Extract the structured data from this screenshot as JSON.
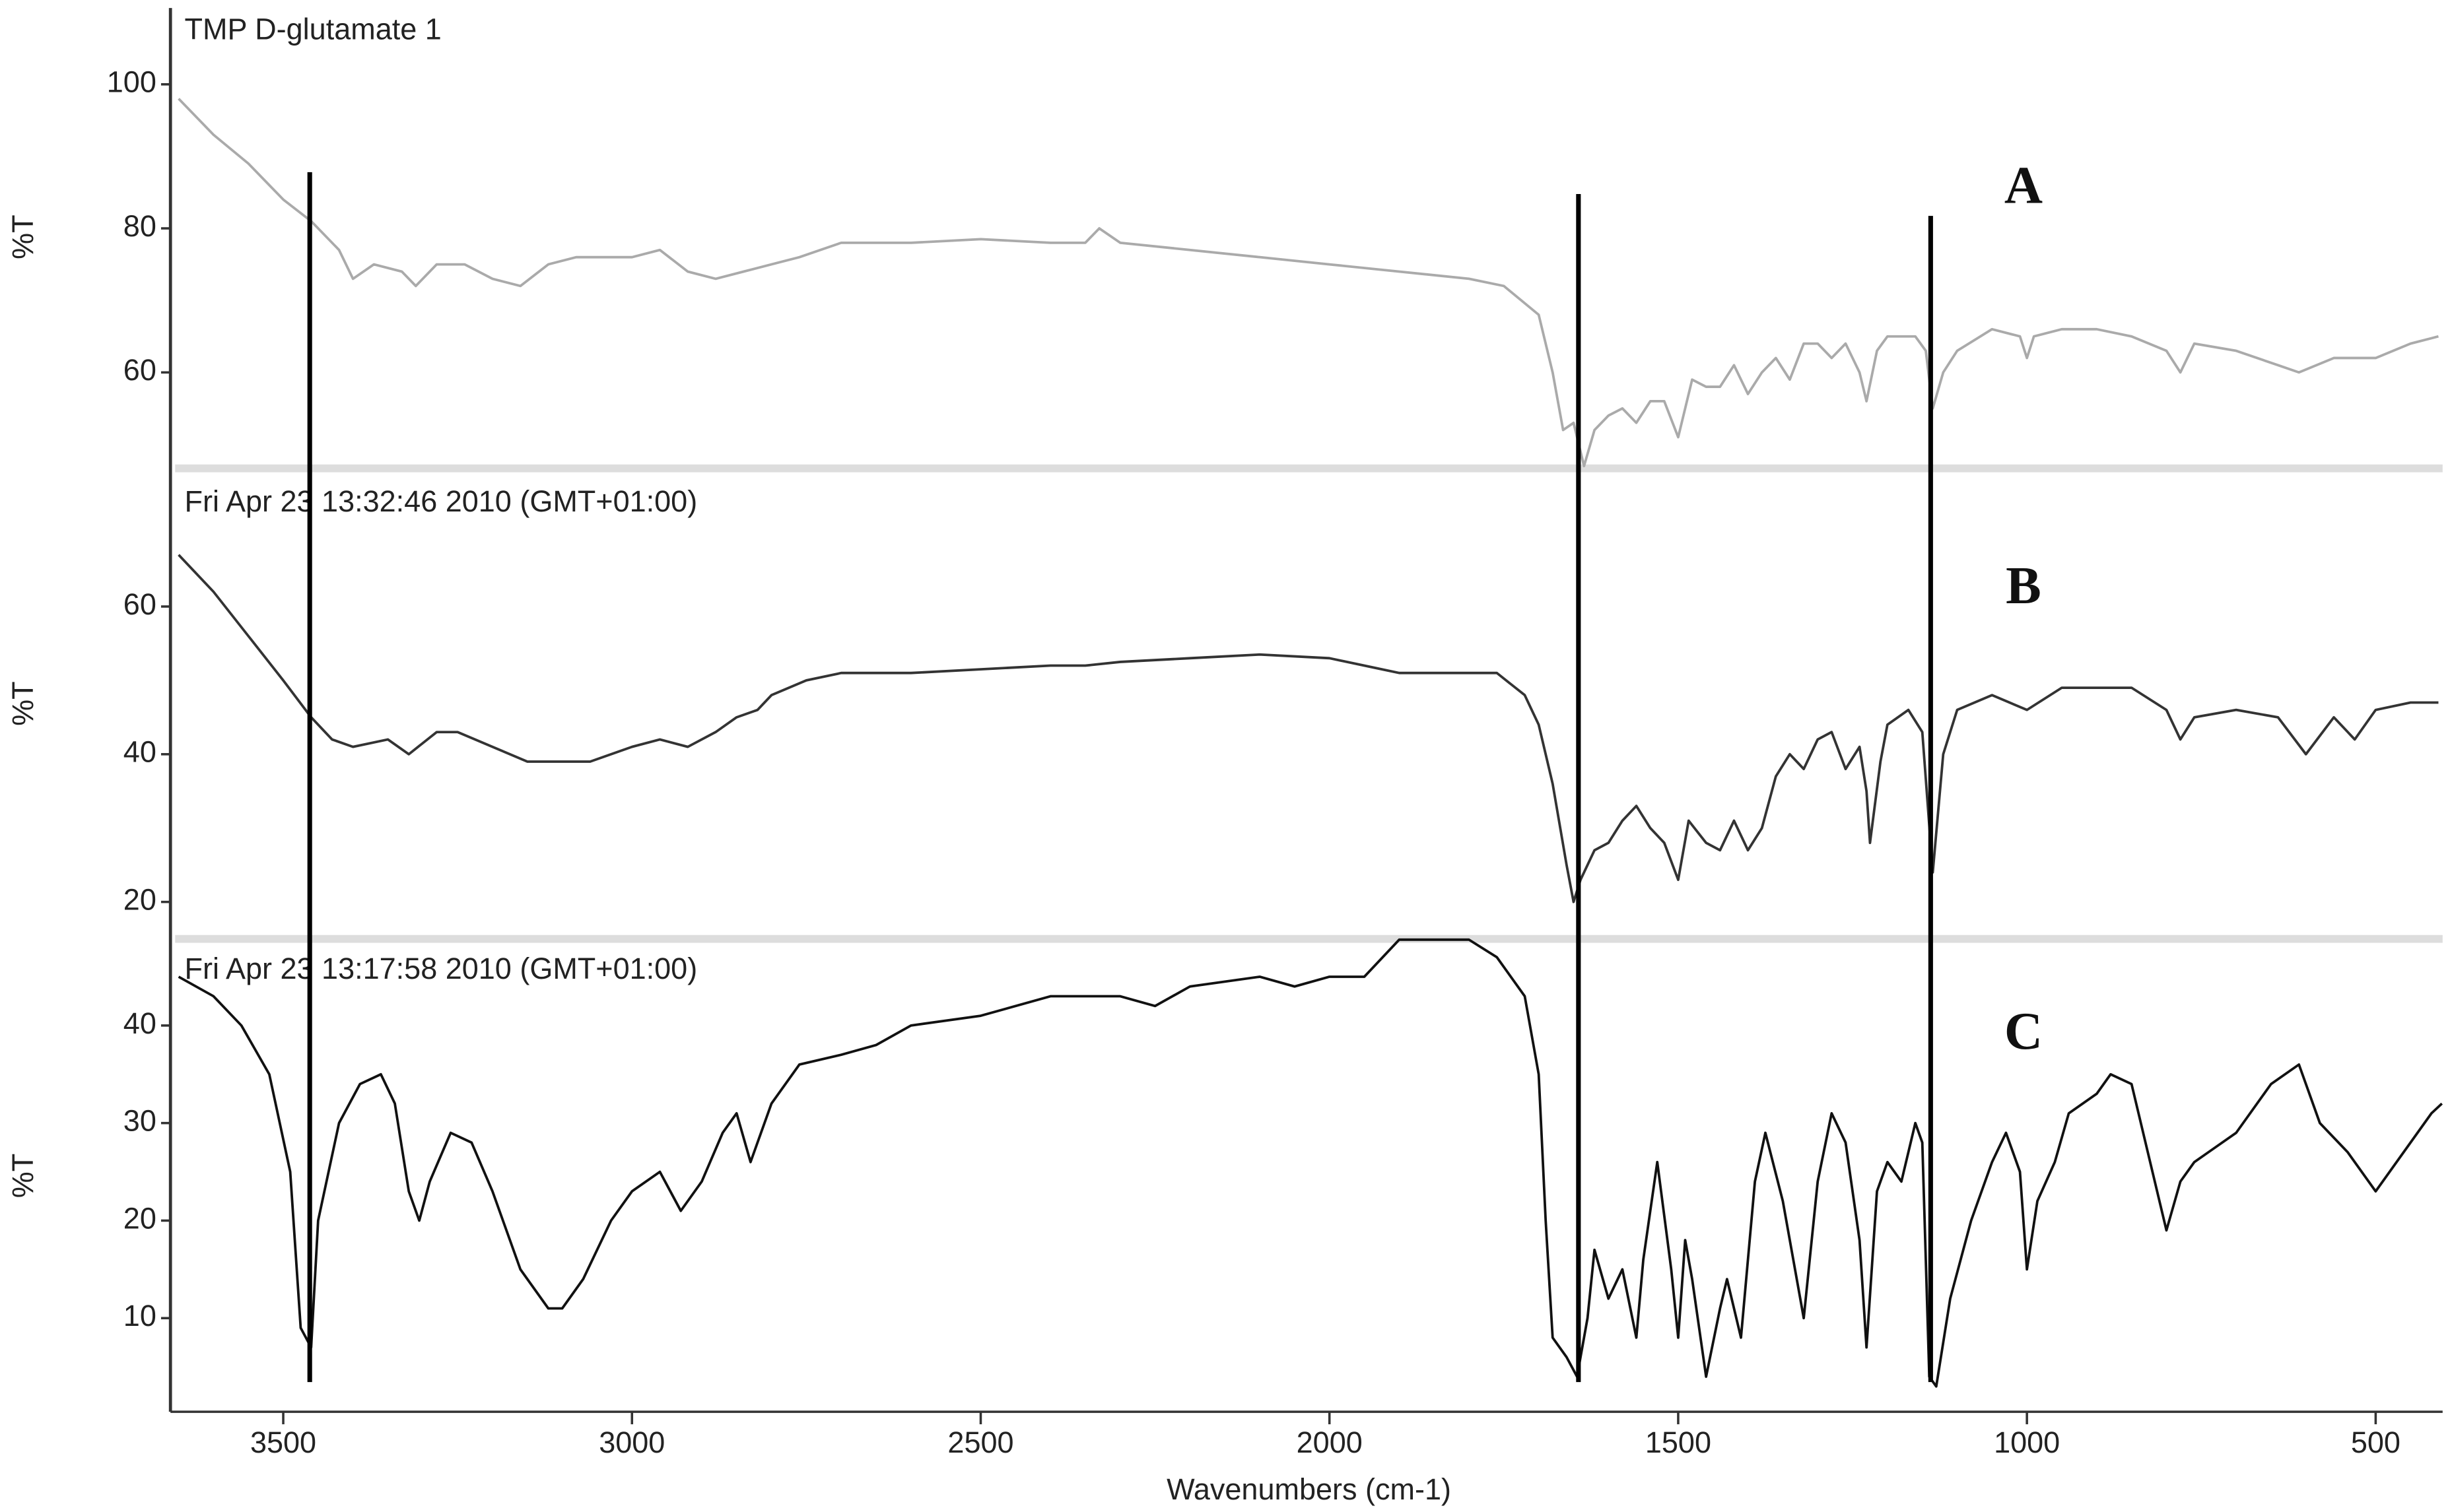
{
  "chart_data": [
    {
      "type": "line",
      "title": "TMP D-glutamate 1",
      "ylabel": "%T",
      "annotation": "A",
      "color": "#aaaaaa",
      "xlim": [
        3655,
        404
      ],
      "ylim": [
        47,
        110.6
      ],
      "yticks": [
        60,
        80,
        100
      ],
      "x": [
        3650,
        3600,
        3550,
        3500,
        3460,
        3420,
        3400,
        3370,
        3330,
        3310,
        3280,
        3240,
        3200,
        3160,
        3120,
        3080,
        3000,
        2960,
        2920,
        2880,
        2840,
        2800,
        2760,
        2700,
        2600,
        2500,
        2400,
        2350,
        2330,
        2300,
        2200,
        2100,
        2000,
        1900,
        1800,
        1750,
        1700,
        1680,
        1665,
        1650,
        1635,
        1620,
        1600,
        1580,
        1560,
        1540,
        1520,
        1500,
        1480,
        1460,
        1440,
        1420,
        1400,
        1380,
        1360,
        1340,
        1320,
        1300,
        1280,
        1260,
        1240,
        1230,
        1215,
        1200,
        1160,
        1145,
        1135,
        1120,
        1100,
        1050,
        1010,
        1000,
        990,
        950,
        900,
        850,
        800,
        780,
        760,
        700,
        640,
        610,
        560,
        500,
        450,
        410
      ],
      "values": [
        98,
        93,
        89,
        84,
        81,
        77,
        73,
        75,
        74,
        72,
        75,
        75,
        73,
        72,
        75,
        76,
        76,
        77,
        74,
        73,
        74,
        75,
        76,
        78,
        78,
        78.5,
        78,
        78,
        80,
        78,
        77,
        76,
        75,
        74,
        73,
        72,
        68,
        60,
        52,
        53,
        47,
        52,
        54,
        55,
        53,
        56,
        56,
        51,
        59,
        58,
        58,
        61,
        57,
        60,
        62,
        59,
        64,
        64,
        62,
        64,
        60,
        56,
        63,
        65,
        65,
        63,
        55,
        60,
        63,
        66,
        65,
        62,
        65,
        66,
        66,
        65,
        63,
        60,
        64,
        63,
        61,
        60,
        62,
        62,
        64,
        65
      ]
    },
    {
      "type": "line",
      "title": "Fri Apr 23 13:32:46 2010 (GMT+01:00)",
      "ylabel": "%T",
      "annotation": "B",
      "color": "#333333",
      "xlim": [
        3655,
        404
      ],
      "ylim": [
        15.1,
        78.6
      ],
      "yticks": [
        20,
        40,
        60
      ],
      "x": [
        3650,
        3600,
        3550,
        3500,
        3460,
        3430,
        3400,
        3350,
        3320,
        3280,
        3250,
        3200,
        3150,
        3100,
        3060,
        3000,
        2960,
        2920,
        2880,
        2850,
        2820,
        2800,
        2750,
        2700,
        2600,
        2500,
        2400,
        2350,
        2300,
        2200,
        2100,
        2000,
        1950,
        1900,
        1800,
        1760,
        1720,
        1700,
        1680,
        1660,
        1650,
        1640,
        1620,
        1600,
        1580,
        1560,
        1540,
        1520,
        1500,
        1485,
        1460,
        1440,
        1420,
        1400,
        1380,
        1360,
        1340,
        1320,
        1300,
        1280,
        1260,
        1240,
        1230,
        1225,
        1210,
        1200,
        1170,
        1150,
        1135,
        1120,
        1100,
        1050,
        1000,
        950,
        900,
        850,
        800,
        780,
        760,
        700,
        640,
        600,
        560,
        530,
        500,
        450,
        410
      ],
      "values": [
        67,
        62,
        56,
        50,
        45,
        42,
        41,
        42,
        40,
        43,
        43,
        41,
        39,
        39,
        39,
        41,
        42,
        41,
        43,
        45,
        46,
        48,
        50,
        51,
        51,
        51.5,
        52,
        52,
        52.5,
        53,
        53.5,
        53,
        52,
        51,
        51,
        51,
        48,
        44,
        36,
        25,
        20,
        23,
        27,
        28,
        31,
        33,
        30,
        28,
        23,
        31,
        28,
        27,
        31,
        27,
        30,
        37,
        40,
        38,
        42,
        43,
        38,
        41,
        35,
        28,
        39,
        44,
        46,
        43,
        24,
        40,
        46,
        48,
        46,
        49,
        49,
        49,
        46,
        42,
        45,
        46,
        45,
        40,
        45,
        42,
        46,
        47,
        47
      ]
    },
    {
      "type": "line",
      "title": "Fri Apr 23 13:17:58 2010 (GMT+01:00)",
      "ylabel": "%T",
      "annotation": "C",
      "color": "#111111",
      "xlabel": "Wavenumbers (cm-1)",
      "xlim": [
        3655,
        404
      ],
      "xticks": [
        3500,
        3000,
        2500,
        2000,
        1500,
        1000,
        500
      ],
      "ylim": [
        0.4,
        48.8
      ],
      "yticks": [
        10,
        20,
        30,
        40
      ],
      "reference_lines": [
        3462,
        1643,
        1138
      ],
      "x": [
        3650,
        3600,
        3560,
        3520,
        3490,
        3475,
        3460,
        3450,
        3420,
        3390,
        3360,
        3340,
        3320,
        3305,
        3290,
        3260,
        3230,
        3200,
        3160,
        3120,
        3100,
        3070,
        3030,
        3000,
        2960,
        2930,
        2900,
        2870,
        2850,
        2830,
        2800,
        2760,
        2700,
        2650,
        2600,
        2500,
        2400,
        2300,
        2250,
        2200,
        2100,
        2050,
        2000,
        1950,
        1900,
        1800,
        1760,
        1720,
        1700,
        1690,
        1680,
        1660,
        1645,
        1630,
        1620,
        1600,
        1580,
        1560,
        1550,
        1530,
        1510,
        1500,
        1490,
        1480,
        1460,
        1440,
        1430,
        1410,
        1390,
        1375,
        1350,
        1320,
        1300,
        1280,
        1260,
        1240,
        1230,
        1215,
        1200,
        1180,
        1160,
        1150,
        1140,
        1130,
        1110,
        1080,
        1050,
        1030,
        1010,
        1000,
        985,
        960,
        940,
        900,
        880,
        850,
        820,
        800,
        780,
        760,
        740,
        700,
        650,
        610,
        580,
        540,
        500,
        460,
        420,
        405
      ],
      "values": [
        45,
        43,
        40,
        35,
        25,
        9,
        7,
        20,
        30,
        34,
        35,
        32,
        23,
        20,
        24,
        29,
        28,
        23,
        15,
        11,
        11,
        14,
        20,
        23,
        25,
        21,
        24,
        29,
        31,
        26,
        32,
        36,
        37,
        38,
        40,
        41,
        43,
        43,
        42,
        44,
        45,
        44,
        45,
        45,
        48.8,
        48.8,
        47,
        43,
        35,
        20,
        8,
        6,
        4,
        10,
        17,
        12,
        15,
        8,
        16,
        26,
        15,
        8,
        18,
        14,
        4,
        11,
        14,
        8,
        24,
        29,
        22,
        10,
        24,
        31,
        28,
        18,
        7,
        23,
        26,
        24,
        30,
        28,
        4,
        3,
        12,
        20,
        26,
        29,
        25,
        15,
        22,
        26,
        31,
        33,
        35,
        34,
        25,
        19,
        24,
        26,
        27,
        29,
        34,
        36,
        30,
        27,
        23,
        27,
        31,
        32
      ]
    }
  ]
}
